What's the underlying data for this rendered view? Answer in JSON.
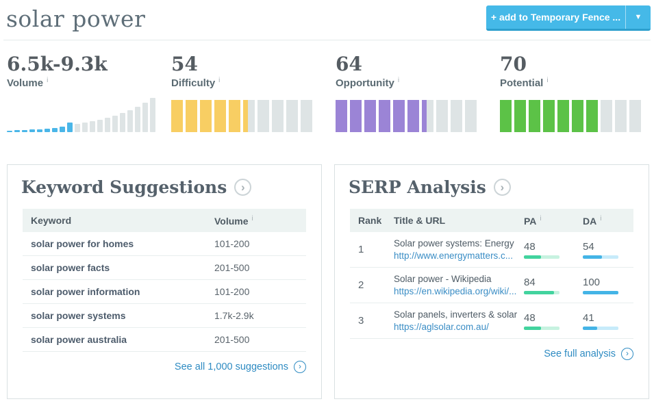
{
  "header": {
    "title": "solar power",
    "add_button": {
      "label": "+ add to Temporary Fence ..."
    }
  },
  "icons": {
    "info": "i",
    "chevron_right": "›",
    "caret_down": "▼"
  },
  "colors": {
    "button": "#45B9E8",
    "bar_gray": "#DEE4E5",
    "volume_blue": "#4AB6E8",
    "difficulty_yellow": "#F8CE63",
    "opportunity_purple": "#9B84D6",
    "potential_green": "#5CC247",
    "link_blue": "#2E8BC2",
    "pa_fill": "#42D39E",
    "pa_track": "#C7F2E0",
    "da_fill": "#44B4E6",
    "da_track": "#C7EBFA"
  },
  "metrics": [
    {
      "id": "volume",
      "value": "6.5k-9.3k",
      "label": "Volume",
      "type": "histogram",
      "color": "#4AB6E8",
      "bars": [
        2,
        3,
        3,
        4,
        4,
        5,
        6,
        8,
        14,
        12,
        14,
        16,
        18,
        21,
        24,
        28,
        32,
        37,
        43,
        50
      ],
      "highlight_count": 9
    },
    {
      "id": "difficulty",
      "value": "54",
      "label": "Difficulty",
      "type": "meter",
      "score": 54,
      "segments": 10,
      "color": "#F8CE63"
    },
    {
      "id": "opportunity",
      "value": "64",
      "label": "Opportunity",
      "type": "meter",
      "score": 64,
      "segments": 10,
      "color": "#9B84D6"
    },
    {
      "id": "potential",
      "value": "70",
      "label": "Potential",
      "type": "meter",
      "score": 70,
      "segments": 10,
      "color": "#5CC247"
    }
  ],
  "chart_data": {
    "type": "bar",
    "title": "Volume distribution",
    "values": [
      2,
      3,
      3,
      4,
      4,
      5,
      6,
      8,
      14,
      12,
      14,
      16,
      18,
      21,
      24,
      28,
      32,
      37,
      43,
      50
    ],
    "highlighted_bars": "first 9 (keyword volume range 6.5k-9.3k)",
    "xlabel": "",
    "ylabel": ""
  },
  "keyword_suggestions": {
    "title": "Keyword Suggestions",
    "columns": [
      "Keyword",
      "Volume"
    ],
    "rows": [
      {
        "keyword": "solar power for homes",
        "volume": "101-200"
      },
      {
        "keyword": "solar power facts",
        "volume": "201-500"
      },
      {
        "keyword": "solar power information",
        "volume": "101-200"
      },
      {
        "keyword": "solar power systems",
        "volume": "1.7k-2.9k"
      },
      {
        "keyword": "solar power australia",
        "volume": "201-500"
      }
    ],
    "footer_link": "See all 1,000 suggestions"
  },
  "serp_analysis": {
    "title": "SERP Analysis",
    "columns": [
      "Rank",
      "Title & URL",
      "PA",
      "DA"
    ],
    "rows": [
      {
        "rank": "1",
        "title": "Solar power systems: Energy ...",
        "url": "http://www.energymatters.c...",
        "pa": 48,
        "da": 54
      },
      {
        "rank": "2",
        "title": "Solar power - Wikipedia",
        "url": "https://en.wikipedia.org/wiki/...",
        "pa": 84,
        "da": 100
      },
      {
        "rank": "3",
        "title": "Solar panels, inverters & solar...",
        "url": "https://aglsolar.com.au/",
        "pa": 48,
        "da": 41
      }
    ],
    "footer_link": "See full analysis"
  }
}
